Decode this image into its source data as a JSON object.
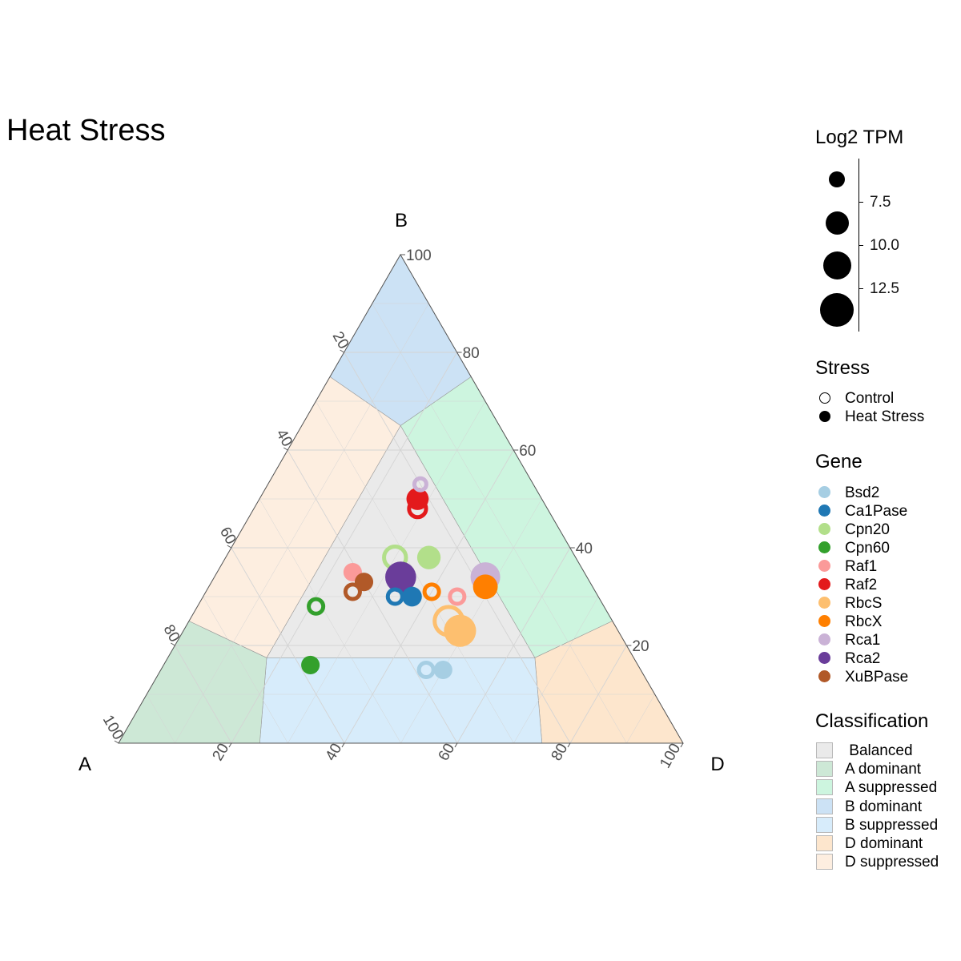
{
  "title": "Heat Stress",
  "chart_data": {
    "type": "ternary-scatter",
    "axes": {
      "A": {
        "label": "A",
        "ticks": [
          "20",
          "40",
          "60",
          "80",
          "100"
        ]
      },
      "B": {
        "label": "B",
        "ticks": [
          "20",
          "40",
          "60",
          "80",
          "100"
        ]
      },
      "D": {
        "label": "D",
        "ticks": [
          "20",
          "40",
          "60",
          "80",
          "100"
        ]
      }
    },
    "grid": true,
    "regions": [
      {
        "name": "Balanced",
        "color": "#eaeaea"
      },
      {
        "name": "A dominant",
        "color": "#cde8d6"
      },
      {
        "name": "A suppressed",
        "color": "#cdf5df"
      },
      {
        "name": "B dominant",
        "color": "#cce2f5"
      },
      {
        "name": "B suppressed",
        "color": "#d7ecfb"
      },
      {
        "name": "D dominant",
        "color": "#fde6cd"
      },
      {
        "name": "D suppressed",
        "color": "#fdeee0"
      }
    ],
    "genes": [
      {
        "name": "Bsd2",
        "color": "#a6cee3"
      },
      {
        "name": "Ca1Pase",
        "color": "#1f78b4"
      },
      {
        "name": "Cpn20",
        "color": "#b2df8a"
      },
      {
        "name": "Cpn60",
        "color": "#33a02c"
      },
      {
        "name": "Raf1",
        "color": "#fb9a99"
      },
      {
        "name": "Raf2",
        "color": "#e31a1c"
      },
      {
        "name": "RbcS",
        "color": "#fdbf6f"
      },
      {
        "name": "RbcX",
        "color": "#ff7f00"
      },
      {
        "name": "Rca1",
        "color": "#cab2d6"
      },
      {
        "name": "Rca2",
        "color": "#6a3d9a"
      },
      {
        "name": "XuBPase",
        "color": "#b15928"
      }
    ],
    "points": [
      {
        "gene": "Raf2",
        "stress": "Heat Stress",
        "A": 22,
        "B": 50,
        "D": 28,
        "tpm": 10.0
      },
      {
        "gene": "Raf2",
        "stress": "Control",
        "A": 23,
        "B": 48,
        "D": 29,
        "tpm": 9.5
      },
      {
        "gene": "Rca1",
        "stress": "Control",
        "A": 20,
        "B": 53,
        "D": 27,
        "tpm": 7.5
      },
      {
        "gene": "Cpn20",
        "stress": "Control",
        "A": 32,
        "B": 38,
        "D": 30,
        "tpm": 11.5
      },
      {
        "gene": "Cpn20",
        "stress": "Heat Stress",
        "A": 26,
        "B": 38,
        "D": 36,
        "tpm": 10.5
      },
      {
        "gene": "Rca2",
        "stress": "Heat Stress",
        "A": 33,
        "B": 34,
        "D": 33,
        "tpm": 13.5
      },
      {
        "gene": "Rca1",
        "stress": "Heat Stress",
        "A": 18,
        "B": 34,
        "D": 48,
        "tpm": 13.0
      },
      {
        "gene": "RbcX",
        "stress": "Heat Stress",
        "A": 19,
        "B": 32,
        "D": 49,
        "tpm": 11.0
      },
      {
        "gene": "Raf1",
        "stress": "Heat Stress",
        "A": 41,
        "B": 35,
        "D": 24,
        "tpm": 8.5
      },
      {
        "gene": "XuBPase",
        "stress": "Heat Stress",
        "A": 40,
        "B": 33,
        "D": 27,
        "tpm": 8.5
      },
      {
        "gene": "XuBPase",
        "stress": "Control",
        "A": 43,
        "B": 31,
        "D": 26,
        "tpm": 8.5
      },
      {
        "gene": "Ca1Pase",
        "stress": "Control",
        "A": 36,
        "B": 30,
        "D": 34,
        "tpm": 8.5
      },
      {
        "gene": "Ca1Pase",
        "stress": "Heat Stress",
        "A": 33,
        "B": 30,
        "D": 37,
        "tpm": 9.0
      },
      {
        "gene": "RbcX",
        "stress": "Control",
        "A": 29,
        "B": 31,
        "D": 40,
        "tpm": 8.5
      },
      {
        "gene": "Raf1",
        "stress": "Control",
        "A": 25,
        "B": 30,
        "D": 45,
        "tpm": 8.5
      },
      {
        "gene": "Cpn60",
        "stress": "Control",
        "A": 51,
        "B": 28,
        "D": 21,
        "tpm": 8.5
      },
      {
        "gene": "RbcS",
        "stress": "Control",
        "A": 29,
        "B": 25,
        "D": 46,
        "tpm": 14.0
      },
      {
        "gene": "RbcS",
        "stress": "Heat Stress",
        "A": 28,
        "B": 23,
        "D": 49,
        "tpm": 14.0
      },
      {
        "gene": "Cpn60",
        "stress": "Heat Stress",
        "A": 58,
        "B": 16,
        "D": 26,
        "tpm": 8.5
      },
      {
        "gene": "Bsd2",
        "stress": "Control",
        "A": 38,
        "B": 15,
        "D": 47,
        "tpm": 8.5
      },
      {
        "gene": "Bsd2",
        "stress": "Heat Stress",
        "A": 35,
        "B": 15,
        "D": 50,
        "tpm": 8.5
      }
    ]
  },
  "legends": {
    "size": {
      "title": "Log2 TPM",
      "ticks": [
        "7.5",
        "10.0",
        "12.5"
      ]
    },
    "stress": {
      "title": "Stress",
      "items": [
        "Control",
        "Heat Stress"
      ]
    },
    "gene": {
      "title": "Gene"
    },
    "classification": {
      "title": "Classification",
      "items": [
        " Balanced",
        "A dominant",
        "A suppressed",
        "B dominant",
        "B suppressed",
        "D dominant",
        "D suppressed"
      ]
    }
  }
}
